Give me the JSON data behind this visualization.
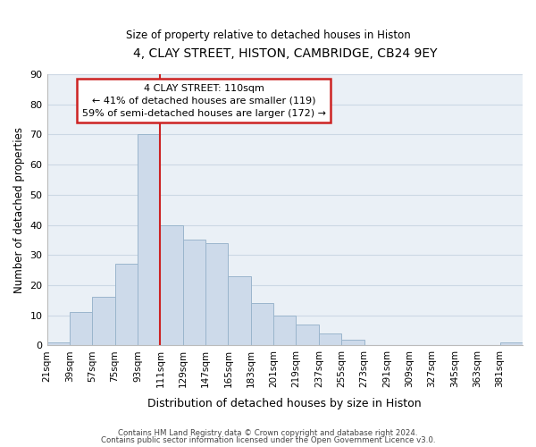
{
  "title": "4, CLAY STREET, HISTON, CAMBRIDGE, CB24 9EY",
  "subtitle": "Size of property relative to detached houses in Histon",
  "xlabel": "Distribution of detached houses by size in Histon",
  "ylabel": "Number of detached properties",
  "bar_color": "#cddaea",
  "bar_edge_color": "#9ab5cc",
  "grid_color": "#ccd8e4",
  "background_color": "#eaf0f6",
  "bin_labels": [
    "21sqm",
    "39sqm",
    "57sqm",
    "75sqm",
    "93sqm",
    "111sqm",
    "129sqm",
    "147sqm",
    "165sqm",
    "183sqm",
    "201sqm",
    "219sqm",
    "237sqm",
    "255sqm",
    "273sqm",
    "291sqm",
    "309sqm",
    "327sqm",
    "345sqm",
    "363sqm",
    "381sqm"
  ],
  "bar_heights": [
    1,
    11,
    16,
    27,
    70,
    40,
    35,
    34,
    23,
    14,
    10,
    7,
    4,
    2,
    0,
    0,
    0,
    0,
    0,
    0,
    1
  ],
  "bin_starts": [
    21,
    39,
    57,
    75,
    93,
    111,
    129,
    147,
    165,
    183,
    201,
    219,
    237,
    255,
    273,
    291,
    309,
    327,
    345,
    363,
    381
  ],
  "bin_width": 18,
  "vline_x": 111,
  "ylim": [
    0,
    90
  ],
  "yticks": [
    0,
    10,
    20,
    30,
    40,
    50,
    60,
    70,
    80,
    90
  ],
  "annotation_text": "4 CLAY STREET: 110sqm\n← 41% of detached houses are smaller (119)\n59% of semi-detached houses are larger (172) →",
  "annotation_box_color": "white",
  "annotation_box_edge_color": "#cc2222",
  "vline_color": "#cc2222",
  "footnote1": "Contains HM Land Registry data © Crown copyright and database right 2024.",
  "footnote2": "Contains public sector information licensed under the Open Government Licence v3.0."
}
